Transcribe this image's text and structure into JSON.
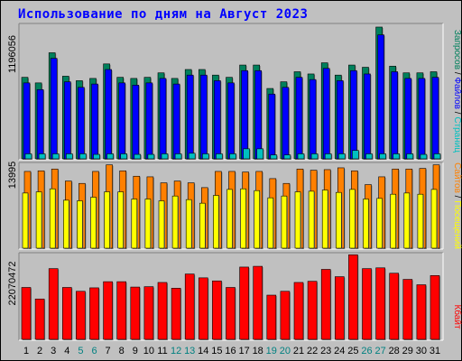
{
  "title": "Использование по дням на Август 2023",
  "colors": {
    "background": "#c0c0c0",
    "hits": "#00805c",
    "files": "#0000ff",
    "pages": "#00c0c0",
    "visits": "#ff8000",
    "sites": "#ffff00",
    "kbytes": "#ff0000",
    "title": "#0000ff",
    "weekend_day": "#008080",
    "weekday": "#000000"
  },
  "chart_data": [
    {
      "type": "bar",
      "title": "Использование по дням на Август 2023",
      "ytick_label": "1196056",
      "side_legend": [
        {
          "text": "Запросов",
          "color": "#00805c"
        },
        {
          "text": "Файлов",
          "color": "#0000ff"
        },
        {
          "text": "Страниц",
          "color": "#00c0c0"
        }
      ],
      "categories": [
        "1",
        "2",
        "3",
        "4",
        "5",
        "6",
        "7",
        "8",
        "9",
        "10",
        "11",
        "12",
        "13",
        "14",
        "15",
        "16",
        "17",
        "18",
        "19",
        "20",
        "21",
        "22",
        "23",
        "24",
        "25",
        "26",
        "27",
        "28",
        "29",
        "30",
        "31"
      ],
      "ylim": [
        0,
        1196056
      ],
      "series": [
        {
          "name": "Запросов",
          "color": "#00805c",
          "values": [
            730000,
            680000,
            950000,
            740000,
            700000,
            720000,
            850000,
            730000,
            720000,
            730000,
            770000,
            720000,
            800000,
            800000,
            750000,
            730000,
            840000,
            840000,
            630000,
            690000,
            780000,
            760000,
            860000,
            750000,
            840000,
            820000,
            1180000,
            830000,
            770000,
            770000,
            780000
          ]
        },
        {
          "name": "Файлов",
          "color": "#0000ff",
          "values": [
            680000,
            620000,
            900000,
            690000,
            640000,
            670000,
            800000,
            680000,
            660000,
            680000,
            720000,
            670000,
            750000,
            750000,
            700000,
            680000,
            790000,
            790000,
            580000,
            640000,
            730000,
            710000,
            810000,
            700000,
            790000,
            760000,
            1110000,
            780000,
            720000,
            720000,
            730000
          ]
        },
        {
          "name": "Страниц",
          "color": "#00c0c0",
          "values": [
            45000,
            45000,
            45000,
            45000,
            45000,
            40000,
            45000,
            45000,
            40000,
            40000,
            45000,
            45000,
            50000,
            45000,
            45000,
            45000,
            90000,
            90000,
            35000,
            35000,
            45000,
            45000,
            45000,
            45000,
            75000,
            45000,
            45000,
            45000,
            45000,
            40000,
            45000
          ]
        }
      ],
      "day_label_colors": [
        "#000000",
        "#000000",
        "#000000",
        "#000000",
        "#008080",
        "#008080",
        "#000000",
        "#000000",
        "#000000",
        "#000000",
        "#000000",
        "#008080",
        "#008080",
        "#000000",
        "#000000",
        "#000000",
        "#000000",
        "#000000",
        "#008080",
        "#008080",
        "#000000",
        "#000000",
        "#000000",
        "#000000",
        "#000000",
        "#008080",
        "#008080",
        "#000000",
        "#000000",
        "#000000",
        "#000000"
      ]
    },
    {
      "type": "bar",
      "ytick_label": "13995",
      "side_legend": [
        {
          "text": "Сайтов",
          "color": "#ff8000"
        },
        {
          "text": "Посещений",
          "color": "#ffff00"
        }
      ],
      "categories": [
        "1",
        "2",
        "3",
        "4",
        "5",
        "6",
        "7",
        "8",
        "9",
        "10",
        "11",
        "12",
        "13",
        "14",
        "15",
        "16",
        "17",
        "18",
        "19",
        "20",
        "21",
        "22",
        "23",
        "24",
        "25",
        "26",
        "27",
        "28",
        "29",
        "30",
        "31"
      ],
      "ylim": [
        0,
        13995
      ],
      "series": [
        {
          "name": "Сайтов",
          "color": "#ff8000",
          "values": [
            12800,
            12900,
            13200,
            11200,
            10800,
            12800,
            13900,
            12900,
            12000,
            11900,
            10900,
            11200,
            10900,
            10100,
            12800,
            12800,
            12700,
            12800,
            11600,
            10800,
            13200,
            13000,
            13100,
            13400,
            12900,
            10600,
            11900,
            13200,
            13200,
            13300,
            13900
          ]
        },
        {
          "name": "Посещений",
          "color": "#ffff00",
          "values": [
            9200,
            9400,
            9900,
            8000,
            7900,
            8500,
            9400,
            9400,
            8200,
            8200,
            7900,
            8700,
            8100,
            7500,
            8800,
            9800,
            9900,
            9600,
            8400,
            8700,
            9400,
            9500,
            9700,
            9300,
            9800,
            8200,
            8300,
            9000,
            9200,
            9000,
            9800
          ]
        }
      ],
      "day_label_colors": []
    },
    {
      "type": "bar",
      "ytick_label": "22070472",
      "side_legend": [
        {
          "text": "Кбайт",
          "color": "#ff0000"
        }
      ],
      "categories": [
        "1",
        "2",
        "3",
        "4",
        "5",
        "6",
        "7",
        "8",
        "9",
        "10",
        "11",
        "12",
        "13",
        "14",
        "15",
        "16",
        "17",
        "18",
        "19",
        "20",
        "21",
        "22",
        "23",
        "24",
        "25",
        "26",
        "27",
        "28",
        "29",
        "30",
        "31"
      ],
      "ylim": [
        0,
        22070472
      ],
      "series": [
        {
          "name": "Кбайт",
          "color": "#ff0000",
          "values": [
            13500000,
            10500000,
            18400000,
            13500000,
            12500000,
            13400000,
            15000000,
            15000000,
            13600000,
            13700000,
            14800000,
            13300000,
            17000000,
            16000000,
            15200000,
            13500000,
            18800000,
            19000000,
            11500000,
            12500000,
            14800000,
            15100000,
            18200000,
            16300000,
            22000000,
            18400000,
            18600000,
            17200000,
            15600000,
            14200000,
            16600000
          ]
        }
      ],
      "day_label_colors": []
    }
  ]
}
